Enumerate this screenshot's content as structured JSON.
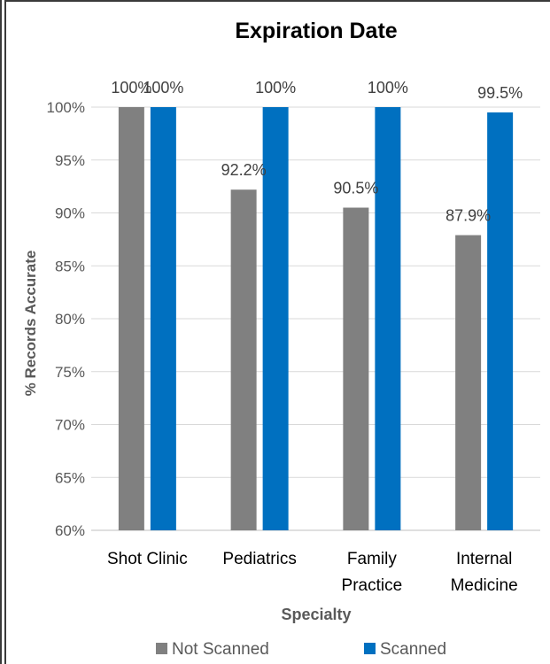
{
  "chart_data": {
    "type": "bar",
    "title": "Expiration Date",
    "xlabel": "Specialty",
    "ylabel": "% Records Accurate",
    "categories": [
      [
        "Shot Clinic"
      ],
      [
        "Pediatrics"
      ],
      [
        "Family",
        "Practice"
      ],
      [
        "Internal",
        "Medicine"
      ]
    ],
    "series": [
      {
        "name": "Not Scanned",
        "color": "#808080",
        "values": [
          100,
          92.2,
          90.5,
          87.9
        ],
        "labels": [
          "100%",
          "92.2%",
          "90.5%",
          "87.9%"
        ]
      },
      {
        "name": "Scanned",
        "color": "#0070C0",
        "values": [
          100,
          100,
          100,
          99.5
        ],
        "labels": [
          "100%",
          "100%",
          "100%",
          "99.5%"
        ]
      }
    ],
    "ylim": [
      60,
      100
    ],
    "yticks": [
      60,
      65,
      70,
      75,
      80,
      85,
      90,
      95,
      100
    ],
    "ytick_labels": [
      "60%",
      "65%",
      "70%",
      "75%",
      "80%",
      "85%",
      "90%",
      "95%",
      "100%"
    ],
    "grid": true,
    "legend_position": "bottom"
  }
}
